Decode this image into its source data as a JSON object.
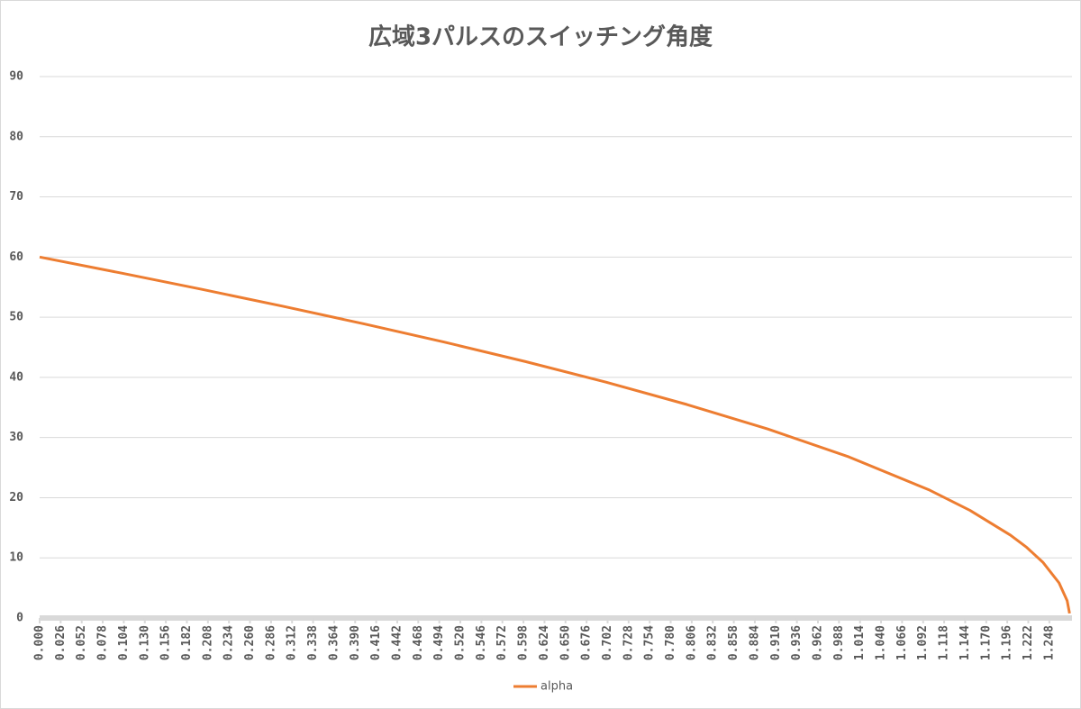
{
  "chart_data": {
    "type": "line",
    "title": "広域3パルスのスイッチング角度",
    "x": [
      0,
      0.1,
      0.2,
      0.3,
      0.4,
      0.5,
      0.6,
      0.7,
      0.8,
      0.9,
      1.0,
      1.1,
      1.15,
      1.2,
      1.22,
      1.24,
      1.26,
      1.27,
      1.273
    ],
    "series": [
      {
        "name": "alpha",
        "color": "#ed7d31",
        "values": [
          60,
          57.36,
          54.65,
          51.84,
          48.92,
          45.87,
          42.64,
          39.21,
          35.49,
          31.42,
          26.79,
          21.26,
          17.89,
          13.77,
          11.74,
          9.27,
          5.84,
          2.89,
          0.77
        ]
      }
    ],
    "xlim": [
      0,
      1.276
    ],
    "ylim": [
      0,
      90
    ],
    "yticks": [
      0,
      10,
      20,
      30,
      40,
      50,
      60,
      70,
      80,
      90
    ],
    "xticks": [
      {
        "value": 0,
        "label": "0.000"
      },
      0.026,
      0.052,
      0.078,
      0.104,
      {
        "value": 0.13,
        "label": "0.130"
      },
      0.156,
      0.182,
      0.208,
      0.234,
      {
        "value": 0.26,
        "label": "0.260"
      },
      0.286,
      0.312,
      0.338,
      0.364,
      {
        "value": 0.39,
        "label": "0.390"
      },
      0.416,
      0.442,
      0.468,
      0.494,
      {
        "value": 0.52,
        "label": "0.520"
      },
      0.546,
      0.572,
      0.598,
      0.624,
      {
        "value": 0.65,
        "label": "0.650"
      },
      0.676,
      0.702,
      0.728,
      0.754,
      {
        "value": 0.78,
        "label": "0.780"
      },
      0.806,
      0.832,
      0.858,
      0.884,
      {
        "value": 0.91,
        "label": "0.910"
      },
      0.936,
      0.962,
      0.988,
      1.014,
      {
        "value": 1.04,
        "label": "1.040"
      },
      1.066,
      1.092,
      1.118,
      1.144,
      {
        "value": 1.17,
        "label": "1.170"
      },
      1.196,
      1.222,
      1.248
    ],
    "grid": true,
    "legend": "bottom"
  }
}
